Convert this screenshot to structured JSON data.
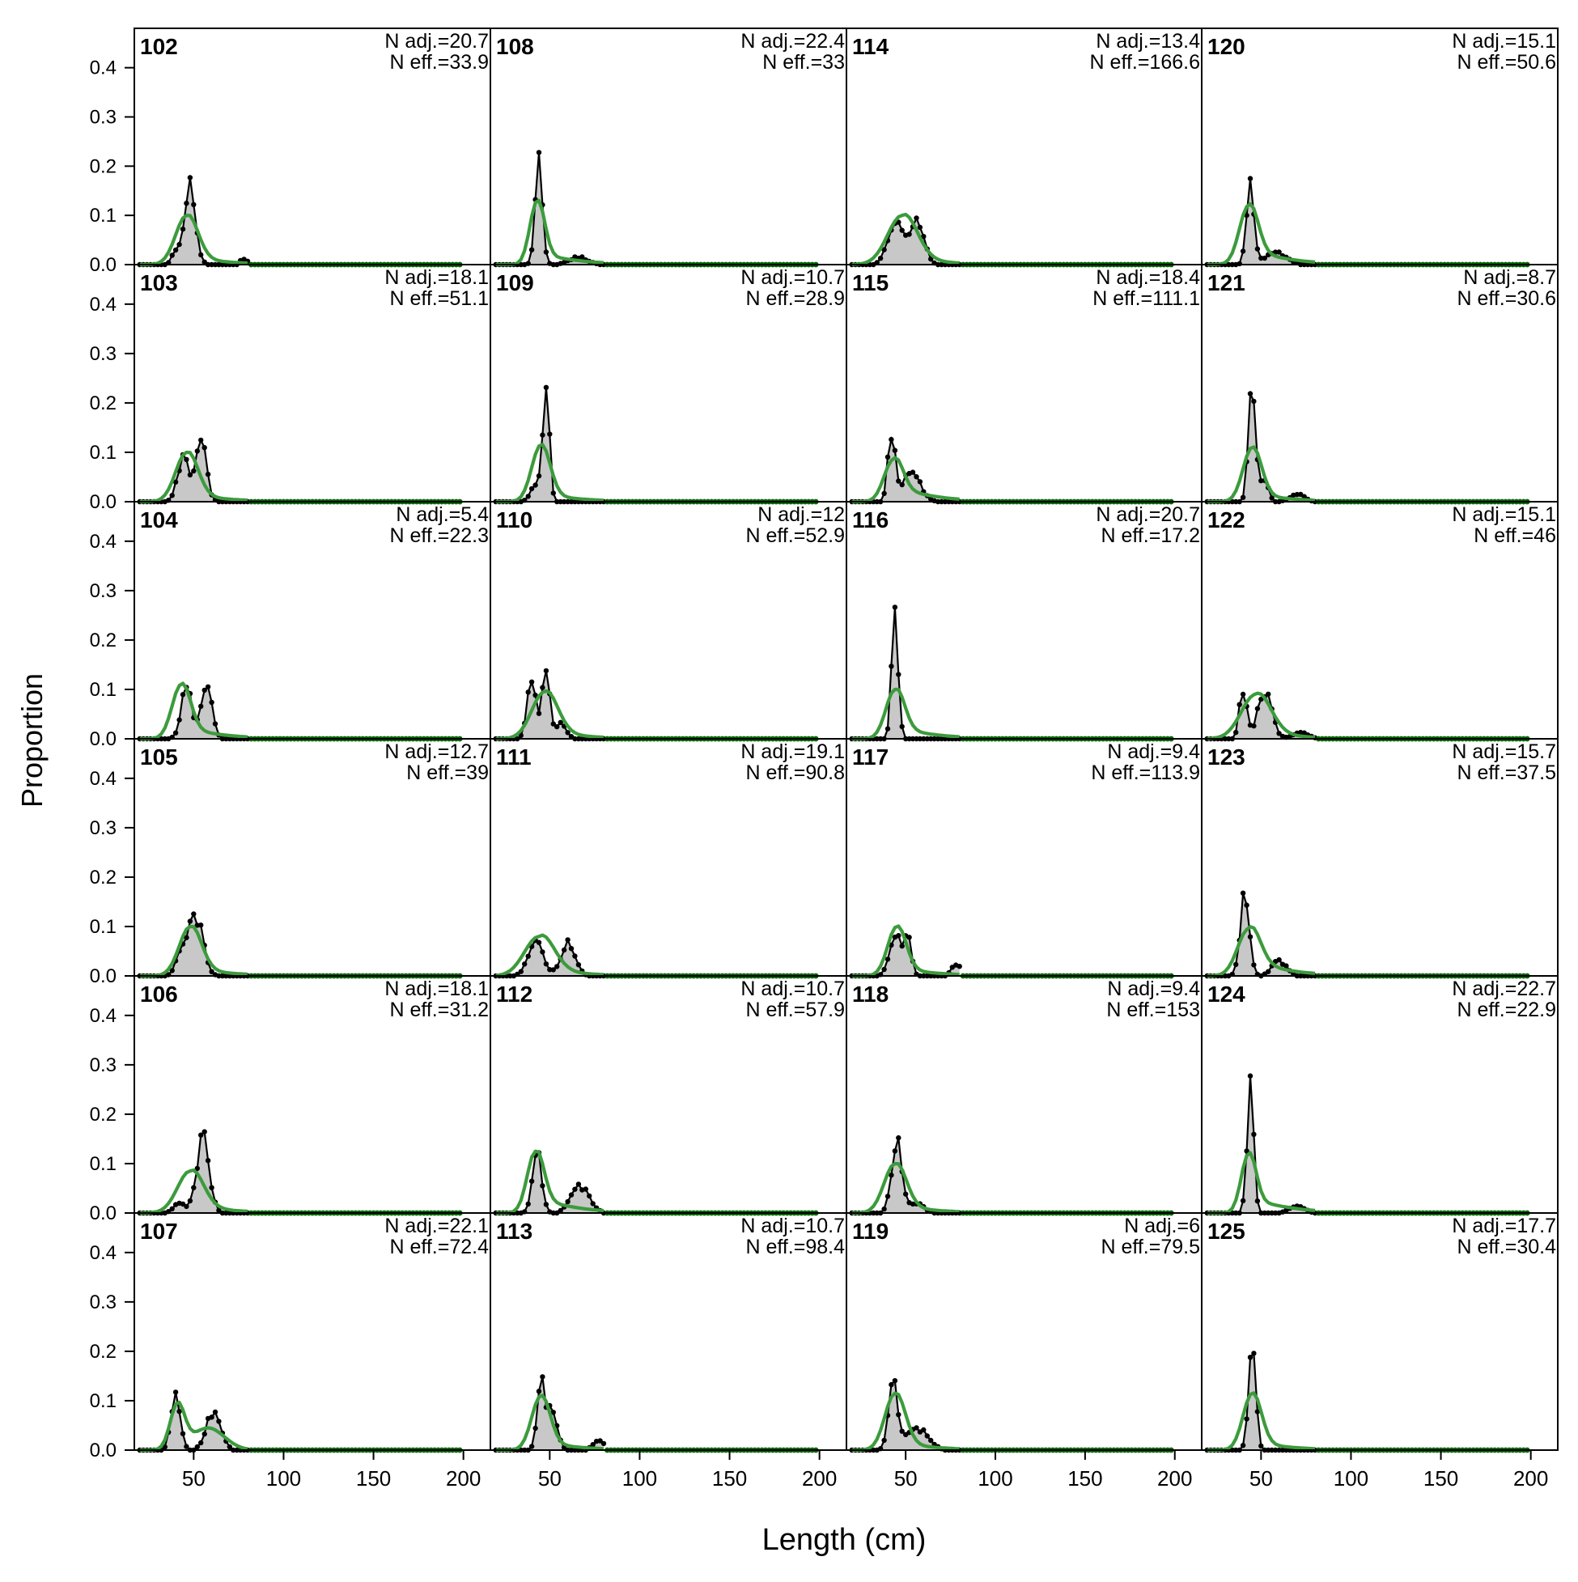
{
  "chart_data": {
    "type": "area",
    "xlabel": "Length (cm)",
    "ylabel": "Proportion",
    "xlim": [
      17,
      215
    ],
    "ylim": [
      0,
      0.48
    ],
    "x_ticks": [
      50,
      100,
      150,
      200
    ],
    "y_ticks": [
      "0.0",
      "0.1",
      "0.2",
      "0.3",
      "0.4"
    ],
    "layout_grid": "6 rows x 4 columns, panels filled column-wise",
    "x": [
      20,
      22,
      24,
      26,
      28,
      30,
      32,
      34,
      36,
      38,
      40,
      42,
      44,
      46,
      48,
      50,
      52,
      54,
      56,
      58,
      60,
      62,
      64,
      66,
      68,
      70,
      72,
      74,
      76,
      78,
      80,
      82,
      84,
      86,
      88,
      90,
      92,
      94,
      96,
      98,
      100,
      102,
      104,
      106,
      108,
      110,
      112,
      114,
      116,
      118,
      120,
      122,
      124,
      126,
      128,
      130,
      132,
      134,
      136,
      138,
      140,
      142,
      144,
      146,
      148,
      150,
      152,
      154,
      156,
      158,
      160,
      162,
      164,
      166,
      168,
      170,
      172,
      174,
      176,
      178,
      180,
      182,
      184,
      186,
      188,
      190,
      192,
      194,
      196,
      198
    ],
    "series_styles": {
      "observed": {
        "color": "#000000",
        "fill": "#c8c8c8",
        "marker": "point"
      },
      "expected": {
        "color": "#3c9b3c"
      },
      "extended_points": {
        "color": "#006400"
      }
    },
    "panels": [
      {
        "label": "102",
        "n_adj_label": "N adj.=20.7",
        "n_eff_label": "N eff.=33.9",
        "observed": [
          {
            "m": 48,
            "s": 3.0,
            "a": 0.16
          },
          {
            "m": 40,
            "s": 2.0,
            "a": 0.03
          },
          {
            "m": 78,
            "s": 2.0,
            "a": 0.012
          }
        ],
        "expected": [
          {
            "m": 46,
            "s": 6.0,
            "a": 0.1
          }
        ],
        "expected_tail": 0.02,
        "obs_max": 80,
        "exp_max": 80
      },
      {
        "label": "103",
        "n_adj_label": "N adj.=18.1",
        "n_eff_label": "N eff.=51.1",
        "observed": [
          {
            "m": 44,
            "s": 3.0,
            "a": 0.09
          },
          {
            "m": 54,
            "s": 3.0,
            "a": 0.12
          }
        ],
        "expected": [
          {
            "m": 46,
            "s": 6.0,
            "a": 0.1
          }
        ],
        "expected_tail": 0.02,
        "obs_max": 80,
        "exp_max": 80
      },
      {
        "label": "104",
        "n_adj_label": "N adj.=5.4",
        "n_eff_label": "N eff.=22.3",
        "observed": [
          {
            "m": 46,
            "s": 3.0,
            "a": 0.1
          },
          {
            "m": 57,
            "s": 3.0,
            "a": 0.12
          }
        ],
        "expected": [
          {
            "m": 43,
            "s": 5.0,
            "a": 0.11
          }
        ],
        "expected_tail": 0.03,
        "obs_max": 80,
        "exp_max": 80
      },
      {
        "label": "105",
        "n_adj_label": "N adj.=12.7",
        "n_eff_label": "N eff.=39",
        "observed": [
          {
            "m": 51,
            "s": 4.0,
            "a": 0.12
          },
          {
            "m": 43,
            "s": 3.0,
            "a": 0.04
          }
        ],
        "expected": [
          {
            "m": 48,
            "s": 6.0,
            "a": 0.1
          }
        ],
        "expected_tail": 0.02,
        "obs_max": 80,
        "exp_max": 80
      },
      {
        "label": "106",
        "n_adj_label": "N adj.=18.1",
        "n_eff_label": "N eff.=31.2",
        "observed": [
          {
            "m": 55,
            "s": 3.5,
            "a": 0.15
          },
          {
            "m": 42,
            "s": 3.0,
            "a": 0.02
          }
        ],
        "expected": [
          {
            "m": 48,
            "s": 7.0,
            "a": 0.085
          }
        ],
        "expected_tail": 0.02,
        "obs_max": 80,
        "exp_max": 80
      },
      {
        "label": "107",
        "n_adj_label": "N adj.=22.1",
        "n_eff_label": "N eff.=72.4",
        "observed": [
          {
            "m": 40,
            "s": 2.5,
            "a": 0.12
          },
          {
            "m": 61,
            "s": 4.0,
            "a": 0.075
          }
        ],
        "expected": [
          {
            "m": 41,
            "s": 4.0,
            "a": 0.09
          },
          {
            "m": 58,
            "s": 9.0,
            "a": 0.045
          }
        ],
        "expected_tail": 0.0,
        "obs_max": 80,
        "exp_max": 80
      },
      {
        "label": "108",
        "n_adj_label": "N adj.=22.4",
        "n_eff_label": "N eff.=33",
        "observed": [
          {
            "m": 44,
            "s": 2.0,
            "a": 0.22
          },
          {
            "m": 66,
            "s": 5.0,
            "a": 0.015
          }
        ],
        "expected": [
          {
            "m": 43,
            "s": 4.0,
            "a": 0.13
          }
        ],
        "expected_tail": 0.03,
        "obs_max": 80,
        "exp_max": 80
      },
      {
        "label": "109",
        "n_adj_label": "N adj.=10.7",
        "n_eff_label": "N eff.=28.9",
        "observed": [
          {
            "m": 48,
            "s": 1.8,
            "a": 0.22
          },
          {
            "m": 43,
            "s": 3.0,
            "a": 0.04
          }
        ],
        "expected": [
          {
            "m": 45,
            "s": 5.0,
            "a": 0.115
          }
        ],
        "expected_tail": 0.02,
        "obs_max": 80,
        "exp_max": 80
      },
      {
        "label": "110",
        "n_adj_label": "N adj.=12",
        "n_eff_label": "N eff.=52.9",
        "observed": [
          {
            "m": 40,
            "s": 2.5,
            "a": 0.12
          },
          {
            "m": 48,
            "s": 2.0,
            "a": 0.16
          },
          {
            "m": 56,
            "s": 3.0,
            "a": 0.03
          }
        ],
        "expected": [
          {
            "m": 47,
            "s": 7.0,
            "a": 0.095
          }
        ],
        "expected_tail": 0.02,
        "obs_max": 80,
        "exp_max": 80
      },
      {
        "label": "111",
        "n_adj_label": "N adj.=19.1",
        "n_eff_label": "N eff.=90.8",
        "observed": [
          {
            "m": 42,
            "s": 4.0,
            "a": 0.07
          },
          {
            "m": 60,
            "s": 4.0,
            "a": 0.065
          }
        ],
        "expected": [
          {
            "m": 44,
            "s": 8.0,
            "a": 0.08
          }
        ],
        "expected_tail": 0.02,
        "obs_max": 80,
        "exp_max": 80
      },
      {
        "label": "112",
        "n_adj_label": "N adj.=10.7",
        "n_eff_label": "N eff.=57.9",
        "observed": [
          {
            "m": 43,
            "s": 2.5,
            "a": 0.12
          },
          {
            "m": 67,
            "s": 5.0,
            "a": 0.055
          }
        ],
        "expected": [
          {
            "m": 42,
            "s": 4.5,
            "a": 0.125
          }
        ],
        "expected_tail": 0.04,
        "obs_max": 80,
        "exp_max": 80
      },
      {
        "label": "113",
        "n_adj_label": "N adj.=10.7",
        "n_eff_label": "N eff.=98.4",
        "observed": [
          {
            "m": 45,
            "s": 2.0,
            "a": 0.15
          },
          {
            "m": 51,
            "s": 3.0,
            "a": 0.08
          },
          {
            "m": 77,
            "s": 3.0,
            "a": 0.02
          }
        ],
        "expected": [
          {
            "m": 45,
            "s": 5.0,
            "a": 0.11
          }
        ],
        "expected_tail": 0.02,
        "obs_max": 80,
        "exp_max": 80
      },
      {
        "label": "114",
        "n_adj_label": "N adj.=13.4",
        "n_eff_label": "N eff.=166.6",
        "observed": [
          {
            "m": 44,
            "s": 4.0,
            "a": 0.09
          },
          {
            "m": 56,
            "s": 4.0,
            "a": 0.085
          }
        ],
        "expected": [
          {
            "m": 48,
            "s": 8.0,
            "a": 0.1
          }
        ],
        "expected_tail": 0.02,
        "obs_max": 80,
        "exp_max": 80
      },
      {
        "label": "115",
        "n_adj_label": "N adj.=18.4",
        "n_eff_label": "N eff.=111.1",
        "observed": [
          {
            "m": 42,
            "s": 2.0,
            "a": 0.13
          },
          {
            "m": 53,
            "s": 5.0,
            "a": 0.06
          }
        ],
        "expected": [
          {
            "m": 43,
            "s": 5.0,
            "a": 0.085
          }
        ],
        "expected_tail": 0.04,
        "obs_max": 80,
        "exp_max": 80
      },
      {
        "label": "116",
        "n_adj_label": "N adj.=20.7",
        "n_eff_label": "N eff.=17.2",
        "observed": [
          {
            "m": 44,
            "s": 1.8,
            "a": 0.26
          }
        ],
        "expected": [
          {
            "m": 44,
            "s": 5.0,
            "a": 0.1
          }
        ],
        "expected_tail": 0.03,
        "obs_max": 80,
        "exp_max": 80
      },
      {
        "label": "117",
        "n_adj_label": "N adj.=9.4",
        "n_eff_label": "N eff.=113.9",
        "observed": [
          {
            "m": 44,
            "s": 3.0,
            "a": 0.09
          },
          {
            "m": 51,
            "s": 2.0,
            "a": 0.08
          },
          {
            "m": 78,
            "s": 2.5,
            "a": 0.025
          }
        ],
        "expected": [
          {
            "m": 45,
            "s": 5.0,
            "a": 0.1
          }
        ],
        "expected_tail": 0.02,
        "obs_max": 80,
        "exp_max": 80
      },
      {
        "label": "118",
        "n_adj_label": "N adj.=9.4",
        "n_eff_label": "N eff.=153",
        "observed": [
          {
            "m": 45,
            "s": 3.0,
            "a": 0.14
          },
          {
            "m": 56,
            "s": 4.0,
            "a": 0.02
          }
        ],
        "expected": [
          {
            "m": 44,
            "s": 6.0,
            "a": 0.1
          }
        ],
        "expected_tail": 0.02,
        "obs_max": 80,
        "exp_max": 80
      },
      {
        "label": "119",
        "n_adj_label": "N adj.=6",
        "n_eff_label": "N eff.=79.5",
        "observed": [
          {
            "m": 43,
            "s": 2.5,
            "a": 0.14
          },
          {
            "m": 56,
            "s": 6.0,
            "a": 0.045
          }
        ],
        "expected": [
          {
            "m": 44,
            "s": 5.5,
            "a": 0.115
          }
        ],
        "expected_tail": 0.02,
        "obs_max": 80,
        "exp_max": 80
      },
      {
        "label": "120",
        "n_adj_label": "N adj.=15.1",
        "n_eff_label": "N eff.=50.6",
        "observed": [
          {
            "m": 44,
            "s": 2.0,
            "a": 0.18
          },
          {
            "m": 58,
            "s": 6.0,
            "a": 0.025
          }
        ],
        "expected": [
          {
            "m": 43,
            "s": 5.0,
            "a": 0.12
          }
        ],
        "expected_tail": 0.04,
        "obs_max": 80,
        "exp_max": 80
      },
      {
        "label": "121",
        "n_adj_label": "N adj.=8.7",
        "n_eff_label": "N eff.=30.6",
        "observed": [
          {
            "m": 45,
            "s": 2.0,
            "a": 0.22
          },
          {
            "m": 52,
            "s": 2.0,
            "a": 0.05
          },
          {
            "m": 70,
            "s": 4.0,
            "a": 0.015
          }
        ],
        "expected": [
          {
            "m": 45,
            "s": 5.0,
            "a": 0.11
          }
        ],
        "expected_tail": 0.02,
        "obs_max": 80,
        "exp_max": 80
      },
      {
        "label": "122",
        "n_adj_label": "N adj.=15.1",
        "n_eff_label": "N eff.=46",
        "observed": [
          {
            "m": 40,
            "s": 2.0,
            "a": 0.1
          },
          {
            "m": 52,
            "s": 4.0,
            "a": 0.09
          },
          {
            "m": 72,
            "s": 4.0,
            "a": 0.015
          }
        ],
        "expected": [
          {
            "m": 47,
            "s": 8.0,
            "a": 0.09
          }
        ],
        "expected_tail": 0.02,
        "obs_max": 80,
        "exp_max": 80
      },
      {
        "label": "123",
        "n_adj_label": "N adj.=15.7",
        "n_eff_label": "N eff.=37.5",
        "observed": [
          {
            "m": 41,
            "s": 2.5,
            "a": 0.16
          },
          {
            "m": 60,
            "s": 4.0,
            "a": 0.03
          }
        ],
        "expected": [
          {
            "m": 43,
            "s": 6.0,
            "a": 0.095
          }
        ],
        "expected_tail": 0.04,
        "obs_max": 80,
        "exp_max": 80
      },
      {
        "label": "124",
        "n_adj_label": "N adj.=22.7",
        "n_eff_label": "N eff.=22.9",
        "observed": [
          {
            "m": 44,
            "s": 1.8,
            "a": 0.26
          },
          {
            "m": 70,
            "s": 4.0,
            "a": 0.015
          }
        ],
        "expected": [
          {
            "m": 43,
            "s": 4.0,
            "a": 0.12
          }
        ],
        "expected_tail": 0.04,
        "obs_max": 80,
        "exp_max": 80
      },
      {
        "label": "125",
        "n_adj_label": "N adj.=17.7",
        "n_eff_label": "N eff.=30.4",
        "observed": [
          {
            "m": 45,
            "s": 2.0,
            "a": 0.22
          }
        ],
        "expected": [
          {
            "m": 45,
            "s": 5.0,
            "a": 0.115
          }
        ],
        "expected_tail": 0.02,
        "obs_max": 80,
        "exp_max": 80
      }
    ]
  }
}
